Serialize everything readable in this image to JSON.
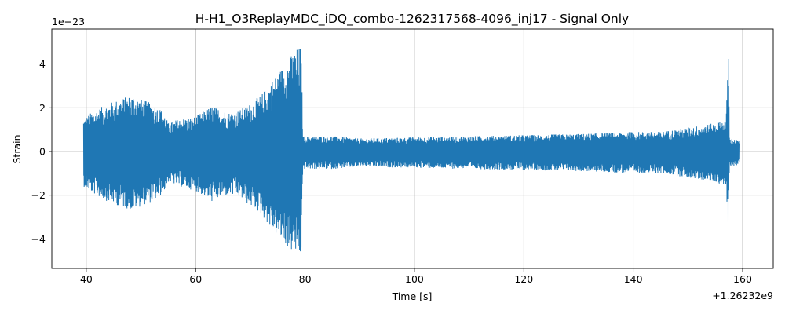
{
  "chart_data": {
    "type": "line",
    "title": "H-H1_O3ReplayMDC_iDQ_combo-1262317568-4096_inj17 - Signal Only",
    "xlabel": "Time [s]",
    "ylabel": "Strain",
    "x_offset_label": "+1.26232e9",
    "y_scale_label": "1e−23",
    "xlim": [
      33.7,
      165.6
    ],
    "ylim": [
      -5.35,
      5.6
    ],
    "x_ticks": [
      40,
      60,
      80,
      100,
      120,
      140,
      160
    ],
    "x_tick_labels": [
      "40",
      "60",
      "80",
      "100",
      "120",
      "140",
      "160"
    ],
    "y_ticks": [
      -4,
      -2,
      0,
      2,
      4
    ],
    "y_tick_labels": [
      "−4",
      "−2",
      "0",
      "2",
      "4"
    ],
    "grid": true,
    "legend": "none",
    "color": "#1f77b4",
    "series": [
      {
        "envelope": [
          {
            "x": 39.5,
            "upper": 1.5,
            "lower": -1.6
          },
          {
            "x": 41,
            "upper": 1.8,
            "lower": -1.9
          },
          {
            "x": 44,
            "upper": 2.2,
            "lower": -2.3
          },
          {
            "x": 46,
            "upper": 2.4,
            "lower": -2.5
          },
          {
            "x": 48.5,
            "upper": 2.6,
            "lower": -2.7
          },
          {
            "x": 50,
            "upper": 2.4,
            "lower": -2.5
          },
          {
            "x": 52,
            "upper": 2.2,
            "lower": -2.3
          },
          {
            "x": 54,
            "upper": 1.9,
            "lower": -2.0
          },
          {
            "x": 55,
            "upper": 1.3,
            "lower": -1.4
          },
          {
            "x": 57,
            "upper": 1.5,
            "lower": -1.6
          },
          {
            "x": 60,
            "upper": 1.6,
            "lower": -1.8
          },
          {
            "x": 63,
            "upper": 2.1,
            "lower": -2.3
          },
          {
            "x": 66,
            "upper": 1.8,
            "lower": -2.0
          },
          {
            "x": 68,
            "upper": 1.9,
            "lower": -2.1
          },
          {
            "x": 70,
            "upper": 2.2,
            "lower": -2.5
          },
          {
            "x": 72,
            "upper": 2.6,
            "lower": -2.9
          },
          {
            "x": 74,
            "upper": 3.3,
            "lower": -3.6
          },
          {
            "x": 76,
            "upper": 3.9,
            "lower": -4.2
          },
          {
            "x": 78,
            "upper": 4.6,
            "lower": -4.7
          },
          {
            "x": 79.3,
            "upper": 4.9,
            "lower": -4.8
          },
          {
            "x": 79.6,
            "upper": 0.7,
            "lower": -0.8
          },
          {
            "x": 85,
            "upper": 0.7,
            "lower": -0.8
          },
          {
            "x": 90,
            "upper": 0.6,
            "lower": -0.7
          },
          {
            "x": 100,
            "upper": 0.65,
            "lower": -0.75
          },
          {
            "x": 110,
            "upper": 0.7,
            "lower": -0.8
          },
          {
            "x": 120,
            "upper": 0.75,
            "lower": -0.85
          },
          {
            "x": 130,
            "upper": 0.8,
            "lower": -0.9
          },
          {
            "x": 140,
            "upper": 0.9,
            "lower": -1.0
          },
          {
            "x": 145,
            "upper": 0.9,
            "lower": -1.0
          },
          {
            "x": 150,
            "upper": 1.1,
            "lower": -1.2
          },
          {
            "x": 155,
            "upper": 1.3,
            "lower": -1.4
          },
          {
            "x": 157,
            "upper": 1.5,
            "lower": -1.6
          },
          {
            "x": 157.4,
            "upper": 5.1,
            "lower": -4.1
          },
          {
            "x": 157.6,
            "upper": 0.6,
            "lower": -0.7
          },
          {
            "x": 159.5,
            "upper": 0.5,
            "lower": -0.6
          }
        ]
      }
    ]
  }
}
